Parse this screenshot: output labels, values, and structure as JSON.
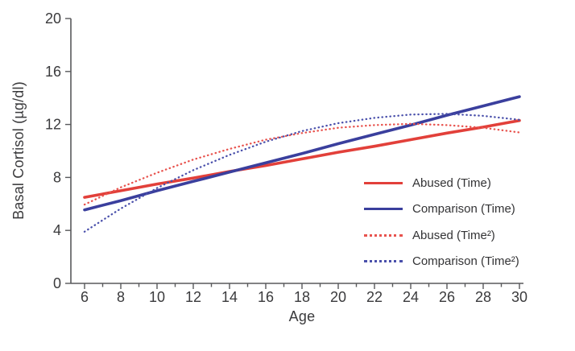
{
  "figure": {
    "background": "#ffffff",
    "axis_color": "#58595b",
    "text_color": "#3a3a3c"
  },
  "axes": {
    "x": {
      "title": "Age",
      "labeled_ages": [
        6,
        8,
        10,
        12,
        14,
        16,
        18,
        20,
        22,
        24,
        26,
        28,
        30
      ],
      "minor_tick_every_year": true
    },
    "y": {
      "title": "Basal Cortisol (µg/dl)",
      "tick_values": [
        0,
        4,
        8,
        12,
        16,
        20
      ],
      "range": [
        0,
        20
      ]
    }
  },
  "chart_data": {
    "type": "line",
    "title": "",
    "xlabel": "Age",
    "ylabel": "Basal Cortisol (µg/dl)",
    "xlim": [
      5.25,
      30.5
    ],
    "ylim": [
      0,
      20
    ],
    "grid": false,
    "legend_position": "right-center",
    "x": [
      6,
      8,
      10,
      12,
      14,
      16,
      18,
      20,
      22,
      24,
      26,
      28,
      30
    ],
    "series": [
      {
        "name": "Abused (Time)",
        "style": "solid",
        "color": "#e2403a",
        "values": [
          6.5,
          7.0,
          7.5,
          7.95,
          8.45,
          8.9,
          9.4,
          9.9,
          10.35,
          10.85,
          11.35,
          11.8,
          12.3
        ]
      },
      {
        "name": "Comparison (Time)",
        "style": "solid",
        "color": "#3a3f9d",
        "values": [
          5.55,
          6.25,
          7.0,
          7.7,
          8.4,
          9.1,
          9.8,
          10.55,
          11.25,
          11.95,
          12.7,
          13.4,
          14.1
        ]
      },
      {
        "name": "Abused (Time²)",
        "style": "dotted",
        "color": "#e8534e",
        "values": [
          5.95,
          7.25,
          8.35,
          9.35,
          10.15,
          10.85,
          11.35,
          11.75,
          11.95,
          12.05,
          11.95,
          11.75,
          11.4
        ]
      },
      {
        "name": "Comparison (Time²)",
        "style": "dotted",
        "color": "#4a50ab",
        "values": [
          3.9,
          5.65,
          7.2,
          8.55,
          9.7,
          10.7,
          11.5,
          12.1,
          12.5,
          12.75,
          12.8,
          12.65,
          12.35
        ]
      }
    ]
  },
  "legend": {
    "items": [
      {
        "label": "Abused (Time)",
        "style": "solid",
        "color": "#e2403a"
      },
      {
        "label": "Comparison (Time)",
        "style": "solid",
        "color": "#3a3f9d"
      },
      {
        "label": "Abused (Time²)",
        "style": "dotted",
        "color": "#e8534e"
      },
      {
        "label": "Comparison (Time²)",
        "style": "dotted",
        "color": "#4a50ab"
      }
    ]
  }
}
